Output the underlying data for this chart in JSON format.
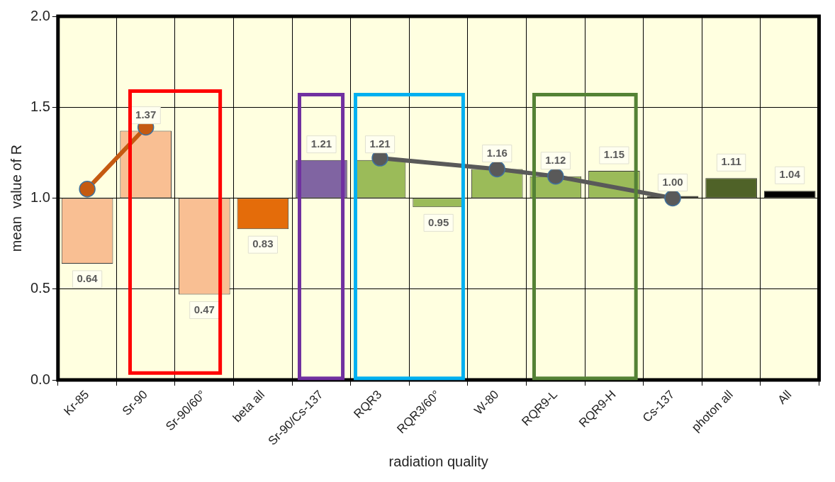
{
  "chart_data": {
    "type": "bar",
    "xlabel": "radiation quality",
    "ylabel": "mean  value of R",
    "categories": [
      "Kr-85",
      "Sr-90",
      "Sr-90/60°",
      "beta all",
      "Sr-90/Cs-137",
      "RQR3",
      "RQR3/60°",
      "W-80",
      "RQR9-L",
      "RQR9-H",
      "Cs-137",
      "photon all",
      "All"
    ],
    "series": [
      {
        "base": [
          1,
          1,
          1,
          1,
          1,
          1,
          1,
          1,
          1,
          1,
          1,
          1,
          1
        ],
        "values": [
          -0.36,
          0.37,
          -0.53,
          -0.17,
          0.21,
          0.21,
          -0.05,
          0.16,
          0.12,
          0.15,
          0.0,
          0.11,
          0.04
        ],
        "value_labels": [
          "0.64",
          "1.37",
          "0.47",
          "0.83",
          "1.21",
          "1.21",
          "0.95",
          "1.16",
          "1.12",
          "1.15",
          "1.00",
          "1.11",
          "1.04"
        ],
        "colors": [
          "#f9bf93",
          "#f9bf93",
          "#f9bf93",
          "#e46c0a",
          "#8064a2",
          "#9bbb59",
          "#9bbb59",
          "#9bbb59",
          "#9bbb59",
          "#9bbb59",
          "#000000",
          "#4f6228",
          "#000000"
        ]
      },
      {
        "type": "line",
        "color": "#c55a11",
        "values": [
          1.05,
          1.39,
          null,
          null,
          null,
          null,
          null,
          null,
          null,
          null,
          null,
          null,
          null
        ]
      },
      {
        "type": "line",
        "color": "#595959",
        "values": [
          null,
          null,
          null,
          null,
          null,
          1.22,
          null,
          1.16,
          1.12,
          null,
          1.0,
          null,
          null
        ]
      }
    ],
    "ylim": [
      0,
      2
    ],
    "yticks": [
      {
        "value": 0,
        "label": "0.0"
      },
      {
        "value": 0.5,
        "label": "0.5"
      },
      {
        "value": 1,
        "label": "1.0"
      },
      {
        "value": 1.5,
        "label": "1.5"
      },
      {
        "value": 2,
        "label": "2.0"
      }
    ],
    "grid": true,
    "marker": "circle",
    "legend": false
  }
}
